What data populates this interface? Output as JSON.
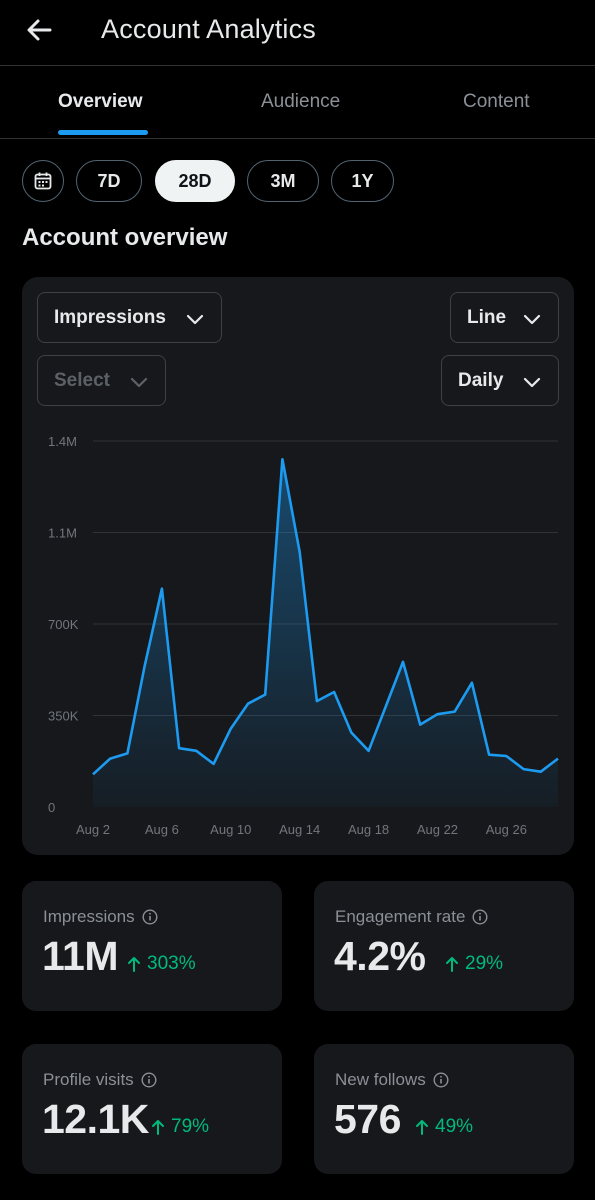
{
  "header": {
    "title": "Account Analytics",
    "back_icon": "arrow-left-icon"
  },
  "tabs": [
    {
      "label": "Overview",
      "active": true
    },
    {
      "label": "Audience",
      "active": false
    },
    {
      "label": "Content",
      "active": false
    }
  ],
  "ranges": {
    "calendar_icon": "calendar-icon",
    "options": [
      {
        "label": "7D",
        "active": false
      },
      {
        "label": "28D",
        "active": true
      },
      {
        "label": "3M",
        "active": false
      },
      {
        "label": "1Y",
        "active": false
      }
    ]
  },
  "section_title": "Account overview",
  "controls": {
    "metric": "Impressions",
    "chart_type": "Line",
    "compare": "Select",
    "interval": "Daily"
  },
  "chart_data": {
    "type": "area",
    "title": "",
    "xlabel": "",
    "ylabel": "",
    "x": [
      "Aug 2",
      "Aug 3",
      "Aug 4",
      "Aug 5",
      "Aug 6",
      "Aug 7",
      "Aug 8",
      "Aug 9",
      "Aug 10",
      "Aug 11",
      "Aug 12",
      "Aug 13",
      "Aug 14",
      "Aug 15",
      "Aug 16",
      "Aug 17",
      "Aug 18",
      "Aug 19",
      "Aug 20",
      "Aug 21",
      "Aug 22",
      "Aug 23",
      "Aug 24",
      "Aug 25",
      "Aug 26",
      "Aug 27",
      "Aug 28",
      "Aug 29"
    ],
    "x_tick_labels": [
      "Aug 2",
      "Aug 6",
      "Aug 10",
      "Aug 14",
      "Aug 18",
      "Aug 22",
      "Aug 26"
    ],
    "y_tick_labels": [
      "0",
      "350K",
      "700K",
      "1.1M",
      "1.4M"
    ],
    "y_ticks": [
      0,
      350000,
      700000,
      1050000,
      1400000
    ],
    "ylim": [
      0,
      1400000
    ],
    "grid": true,
    "series": [
      {
        "values": [
          125000,
          185000,
          205000,
          540000,
          835000,
          225000,
          215000,
          165000,
          300000,
          395000,
          430000,
          1330000,
          975000,
          405000,
          440000,
          285000,
          215000,
          385000,
          555000,
          315000,
          355000,
          365000,
          475000,
          200000,
          195000,
          145000,
          135000,
          185000
        ]
      }
    ],
    "color": "#1d9bf0"
  },
  "stats": [
    {
      "label": "Impressions",
      "value": "11M",
      "change": "303%"
    },
    {
      "label": "Engagement rate",
      "value": "4.2%",
      "change": "29%"
    },
    {
      "label": "Profile visits",
      "value": "12.1K",
      "change": "79%"
    },
    {
      "label": "New follows",
      "value": "576",
      "change": "49%"
    }
  ],
  "colors": {
    "accent": "#1d9bf0",
    "positive": "#00ba7c",
    "background": "#000000",
    "card": "#16181c"
  }
}
